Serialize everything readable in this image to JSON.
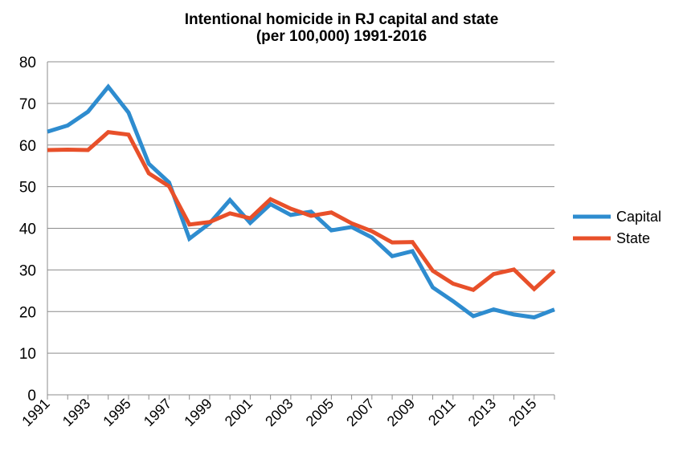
{
  "chart_data": {
    "type": "line",
    "title_line1": "Intentional homicide in RJ capital and state",
    "title_line2": "(per 100,000) 1991-2016",
    "xlabel": "",
    "ylabel": "",
    "ylim": [
      0,
      80
    ],
    "yticks": [
      "0",
      "10",
      "20",
      "30",
      "40",
      "50",
      "60",
      "70",
      "80"
    ],
    "x": [
      1991,
      1992,
      1993,
      1994,
      1995,
      1996,
      1997,
      1998,
      1999,
      2000,
      2001,
      2002,
      2003,
      2004,
      2005,
      2006,
      2007,
      2008,
      2009,
      2010,
      2011,
      2012,
      2013,
      2014,
      2015,
      2016
    ],
    "xtick_labels": [
      "1991",
      "1993",
      "1995",
      "1997",
      "1999",
      "2001",
      "2003",
      "2005",
      "2007",
      "2009",
      "2011",
      "2013",
      "2015"
    ],
    "grid": true,
    "legend_position": "right",
    "series": [
      {
        "name": "Capital",
        "color": "#2e8ccf",
        "values": [
          63.2,
          64.7,
          68.0,
          74.0,
          67.8,
          55.5,
          51.0,
          37.5,
          41.2,
          46.8,
          41.3,
          45.8,
          43.2,
          44.0,
          39.5,
          40.3,
          37.8,
          33.3,
          34.5,
          25.8,
          22.5,
          18.9,
          20.5,
          19.3,
          18.6,
          20.5
        ]
      },
      {
        "name": "State",
        "color": "#e8502a",
        "values": [
          58.8,
          58.9,
          58.8,
          63.1,
          62.5,
          53.2,
          50.1,
          40.9,
          41.5,
          43.6,
          42.4,
          47.0,
          44.7,
          43.0,
          43.8,
          41.2,
          39.3,
          36.6,
          36.7,
          29.8,
          26.7,
          25.2,
          29.0,
          30.1,
          25.4,
          29.8
        ]
      }
    ]
  }
}
